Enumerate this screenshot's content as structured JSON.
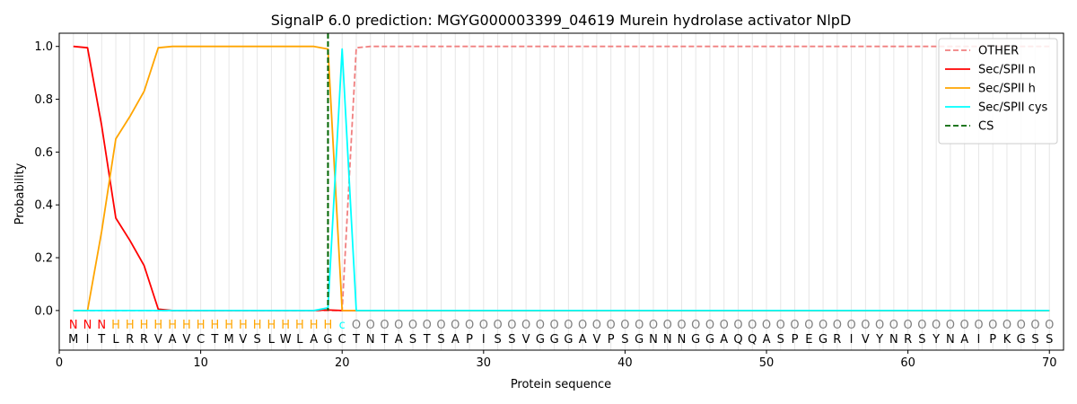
{
  "chart_data": {
    "type": "line",
    "title": "SignalP 6.0 prediction: MGYG000003399_04619 Murein hydrolase activator NlpD",
    "xlabel": "Protein sequence",
    "ylabel": "Probability",
    "xlim": [
      0,
      71
    ],
    "ylim": [
      -0.15,
      1.05
    ],
    "xticks": [
      0,
      10,
      20,
      30,
      40,
      50,
      60,
      70
    ],
    "yticks": [
      0.0,
      0.2,
      0.4,
      0.6,
      0.8,
      1.0
    ],
    "ytick_labels": [
      "0.0",
      "0.2",
      "0.4",
      "0.6",
      "0.8",
      "1.0"
    ],
    "grid": "vertical lines at each residue",
    "legend_position": "top-right",
    "sequence": [
      "M",
      "I",
      "T",
      "L",
      "R",
      "R",
      "V",
      "A",
      "V",
      "C",
      "T",
      "M",
      "V",
      "S",
      "L",
      "W",
      "L",
      "A",
      "G",
      "C",
      "T",
      "N",
      "T",
      "A",
      "S",
      "T",
      "S",
      "A",
      "P",
      "I",
      "S",
      "S",
      "V",
      "G",
      "G",
      "G",
      "A",
      "V",
      "P",
      "S",
      "G",
      "N",
      "N",
      "N",
      "G",
      "G",
      "A",
      "Q",
      "Q",
      "A",
      "S",
      "P",
      "E",
      "G",
      "R",
      "I",
      "V",
      "Y",
      "N",
      "R",
      "S",
      "Y",
      "N",
      "A",
      "I",
      "P",
      "K",
      "G",
      "S",
      "S"
    ],
    "labels": [
      "N",
      "N",
      "N",
      "H",
      "H",
      "H",
      "H",
      "H",
      "H",
      "H",
      "H",
      "H",
      "H",
      "H",
      "H",
      "H",
      "H",
      "H",
      "H",
      "C",
      "O",
      "O",
      "O",
      "O",
      "O",
      "O",
      "O",
      "O",
      "O",
      "O",
      "O",
      "O",
      "O",
      "O",
      "O",
      "O",
      "O",
      "O",
      "O",
      "O",
      "O",
      "O",
      "O",
      "O",
      "O",
      "O",
      "O",
      "O",
      "O",
      "O",
      "O",
      "O",
      "O",
      "O",
      "O",
      "O",
      "O",
      "O",
      "O",
      "O",
      "O",
      "O",
      "O",
      "O",
      "O",
      "O",
      "O",
      "O",
      "O",
      "O"
    ],
    "label_colors": {
      "N": "#ff0000",
      "H": "#ffa500",
      "C": "#00ffff",
      "O": "#808080"
    },
    "series": [
      {
        "name": "OTHER",
        "color": "#f08080",
        "dash": "dashed",
        "x": [
          1,
          2,
          3,
          4,
          5,
          6,
          7,
          8,
          9,
          10,
          11,
          12,
          13,
          14,
          15,
          16,
          17,
          18,
          19,
          20,
          21,
          22,
          70
        ],
        "values": [
          0,
          0,
          0,
          0,
          0,
          0,
          0,
          0,
          0,
          0,
          0,
          0,
          0,
          0,
          0,
          0,
          0,
          0,
          0,
          0,
          0.995,
          1.0,
          1.0
        ]
      },
      {
        "name": "Sec/SPII n",
        "color": "#ff0000",
        "dash": "solid",
        "x": [
          1,
          2,
          3,
          4,
          5,
          6,
          7,
          8,
          9,
          18,
          19,
          20,
          21,
          70
        ],
        "values": [
          1.0,
          0.995,
          0.7,
          0.35,
          0.265,
          0.17,
          0.005,
          0.0,
          0.0,
          0.0,
          0.002,
          0.0,
          0.0,
          0.0
        ]
      },
      {
        "name": "Sec/SPII h",
        "color": "#ffa500",
        "dash": "solid",
        "x": [
          1,
          2,
          3,
          4,
          5,
          6,
          7,
          8,
          9,
          18,
          19,
          20,
          21,
          70
        ],
        "values": [
          0.0,
          0.0,
          0.3,
          0.65,
          0.735,
          0.83,
          0.995,
          1.0,
          1.0,
          1.0,
          0.99,
          0.0,
          0.0,
          0.0
        ]
      },
      {
        "name": "Sec/SPII cys",
        "color": "#00ffff",
        "dash": "solid",
        "x": [
          1,
          18,
          19,
          20,
          21,
          70
        ],
        "values": [
          0.0,
          0.0,
          0.01,
          0.99,
          0.0,
          0.0
        ]
      },
      {
        "name": "CS",
        "color": "#006400",
        "dash": "dashed",
        "kind": "vline",
        "x": [
          19
        ],
        "values": [
          1.05
        ]
      }
    ]
  }
}
